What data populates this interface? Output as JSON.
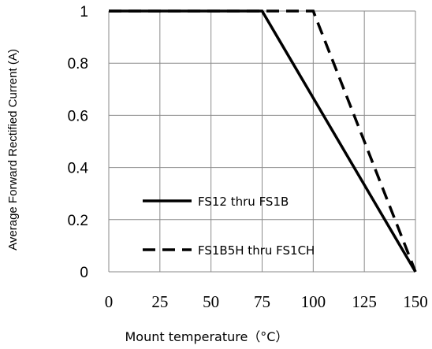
{
  "chart_data": {
    "type": "line",
    "title": "",
    "xlabel": "Mount temperature（°C）",
    "ylabel": "Average  Forward  Rectified Current (A)",
    "xlim": [
      0,
      150
    ],
    "ylim": [
      0,
      1
    ],
    "xticks": [
      "0",
      "25",
      "50",
      "75",
      "100",
      "125",
      "150"
    ],
    "yticks": [
      "0",
      "0.2",
      "0.4",
      "0.6",
      "0.8",
      "1"
    ],
    "grid": true,
    "legend_position": "lower-left",
    "series": [
      {
        "name": "FS12 thru FS1B",
        "style": "solid",
        "color": "#000000",
        "x": [
          0,
          75,
          150
        ],
        "y": [
          1,
          1,
          0
        ]
      },
      {
        "name": "FS1B5H thru FS1CH",
        "style": "dashed",
        "color": "#000000",
        "x": [
          0,
          100,
          150
        ],
        "y": [
          1,
          1,
          0
        ]
      }
    ]
  }
}
